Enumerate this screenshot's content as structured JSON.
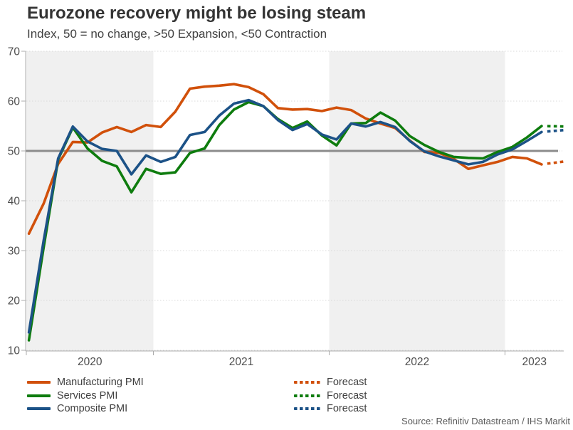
{
  "header": {
    "title": "Eurozone recovery might be losing steam",
    "subtitle": "Index, 50 = no change, >50 Expansion, <50 Contraction"
  },
  "legend": {
    "forecast_label": "Forecast",
    "items": [
      {
        "label": "Manufacturing PMI",
        "color": "#D1500A"
      },
      {
        "label": "Services PMI",
        "color": "#0E7C0E"
      },
      {
        "label": "Composite PMI",
        "color": "#1C5287"
      }
    ]
  },
  "source_note": "Source: Refinitiv Datastream / IHS Markit",
  "chart_data": {
    "type": "line",
    "title": "Eurozone recovery might be losing steam",
    "subtitle": "Index, 50 = no change, >50 Expansion, <50 Contraction",
    "frequency": "monthly",
    "x_start": "2020-04",
    "x_end": "2023-03",
    "forecast_x": "2023-04",
    "x_tick_labels": [
      "2020",
      "2021",
      "2022",
      "2023"
    ],
    "ylabel": "Index",
    "ylim": [
      10,
      70
    ],
    "yticks": [
      10,
      20,
      30,
      40,
      50,
      60,
      70
    ],
    "reference_line": 50,
    "grid": "horizontal-dotted",
    "shaded_years": [
      "2020",
      "2022"
    ],
    "legend_position": "bottom-left",
    "series": [
      {
        "name": "Manufacturing PMI",
        "color": "#D1500A",
        "values": [
          33.4,
          39.4,
          47.4,
          51.8,
          51.7,
          53.7,
          54.8,
          53.8,
          55.2,
          54.8,
          57.9,
          62.5,
          62.9,
          63.1,
          63.4,
          62.8,
          61.4,
          58.6,
          58.3,
          58.4,
          58.0,
          58.7,
          58.2,
          56.5,
          55.5,
          54.6,
          52.1,
          49.8,
          49.6,
          48.4,
          46.4,
          47.1,
          47.8,
          48.8,
          48.5,
          47.3
        ],
        "forecast": 47.9
      },
      {
        "name": "Services PMI",
        "color": "#0E7C0E",
        "values": [
          12.0,
          30.5,
          48.3,
          54.7,
          50.5,
          48.0,
          46.9,
          41.7,
          46.4,
          45.4,
          45.7,
          49.6,
          50.5,
          55.2,
          58.3,
          59.8,
          59.0,
          56.4,
          54.6,
          55.9,
          53.1,
          51.1,
          55.5,
          55.6,
          57.7,
          56.1,
          53.0,
          51.2,
          49.8,
          48.8,
          48.6,
          48.5,
          49.8,
          50.8,
          52.7,
          55.0
        ],
        "forecast": 54.9
      },
      {
        "name": "Composite PMI",
        "color": "#1C5287",
        "values": [
          13.6,
          31.9,
          48.5,
          54.9,
          51.9,
          50.4,
          50.0,
          45.3,
          49.1,
          47.8,
          48.8,
          53.2,
          53.8,
          57.1,
          59.5,
          60.2,
          59.0,
          56.2,
          54.2,
          55.4,
          53.3,
          52.3,
          55.5,
          54.9,
          55.8,
          54.8,
          52.0,
          49.9,
          48.9,
          48.1,
          47.3,
          47.8,
          49.3,
          50.3,
          52.0,
          53.8
        ],
        "forecast": 54.2
      }
    ],
    "style": {
      "band_fill": "#F0F0F0",
      "grid_color": "#D9D9D9",
      "axis_color": "#ABABAB",
      "tick_label_color": "#4D4D4D",
      "reference_line_color": "#8C8C8C"
    }
  }
}
